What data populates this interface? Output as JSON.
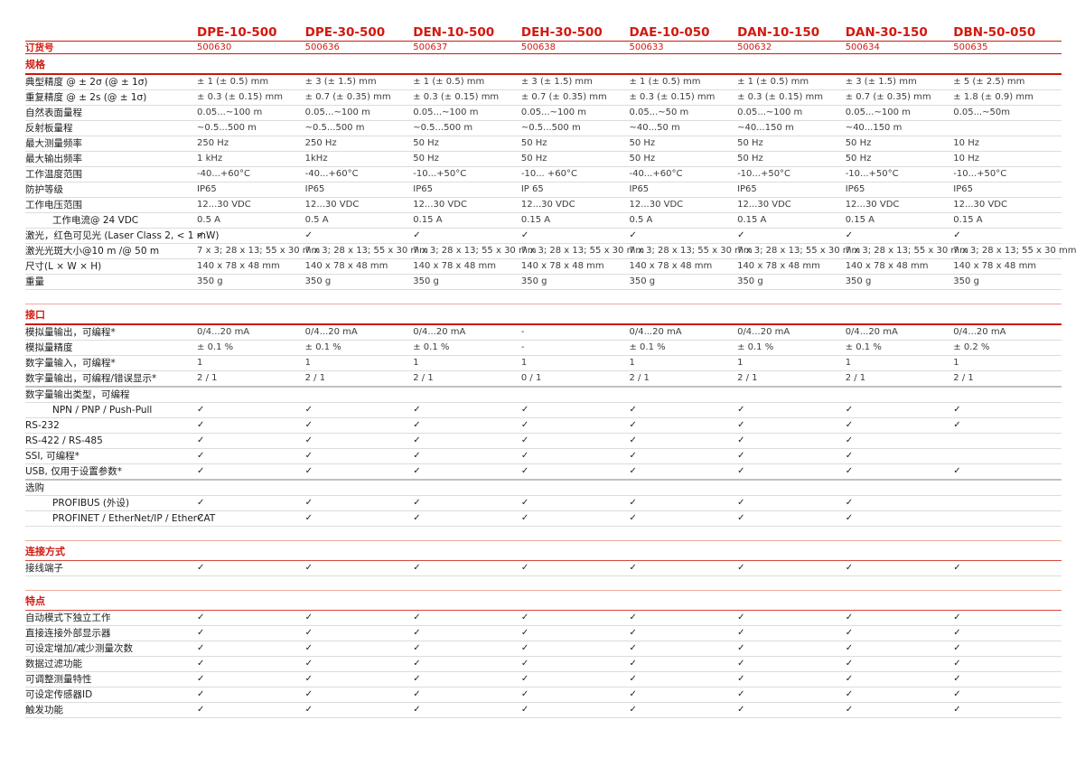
{
  "colors": {
    "accent_red": "#d2190f",
    "row_line_gray": "#dcdcdc",
    "section_line_light": "#efaaa1",
    "text_dark": "#1c1c1c",
    "text_value": "#3c3c3c"
  },
  "table": {
    "order_label": "订货号",
    "check_glyph": "✓",
    "models": [
      {
        "name": "DPE-10-500",
        "order": "500630"
      },
      {
        "name": "DPE-30-500",
        "order": "500636"
      },
      {
        "name": "DEN-10-500",
        "order": "500637"
      },
      {
        "name": "DEH-30-500",
        "order": "500638"
      },
      {
        "name": "DAE-10-050",
        "order": "500633"
      },
      {
        "name": "DAN-10-150",
        "order": "500632"
      },
      {
        "name": "DAN-30-150",
        "order": "500634"
      },
      {
        "name": "DBN-50-050",
        "order": "500635"
      }
    ],
    "sections": [
      {
        "title": "规格",
        "rows": [
          {
            "label": "典型精度 @ ± 2σ (@ ± 1σ)",
            "indent": false,
            "subhead": false,
            "values": [
              "± 1 (± 0.5) mm",
              "± 3 (± 1.5) mm",
              "± 1 (± 0.5) mm",
              "± 3 (± 1.5) mm",
              "± 1 (± 0.5) mm",
              "± 1 (± 0.5) mm",
              "± 3 (± 1.5) mm",
              "± 5 (± 2.5) mm"
            ]
          },
          {
            "label": "重复精度 @ ± 2s (@ ± 1σ)",
            "indent": false,
            "subhead": false,
            "values": [
              "± 0.3 (± 0.15) mm",
              "± 0.7 (± 0.35) mm",
              "± 0.3 (± 0.15) mm",
              "± 0.7 (± 0.35) mm",
              "± 0.3 (± 0.15) mm",
              "± 0.3 (± 0.15) mm",
              "± 0.7 (± 0.35) mm",
              "± 1.8 (± 0.9) mm"
            ]
          },
          {
            "label": "自然表面量程",
            "indent": false,
            "subhead": false,
            "values": [
              "0.05...~100 m",
              "0.05...~100 m",
              "0.05...~100 m",
              "0.05...~100 m",
              "0.05...~50 m",
              "0.05...~100 m",
              "0.05...~100 m",
              "0.05...~50m"
            ]
          },
          {
            "label": "反射板量程",
            "indent": false,
            "subhead": false,
            "values": [
              "~0.5...500 m",
              "~0.5...500 m",
              "~0.5...500 m",
              "~0.5...500 m",
              "~40...50 m",
              "~40...150 m",
              "~40...150 m",
              ""
            ]
          },
          {
            "label": "最大测量频率",
            "indent": false,
            "subhead": false,
            "values": [
              "250 Hz",
              "250 Hz",
              "50 Hz",
              "50 Hz",
              "50 Hz",
              "50 Hz",
              "50 Hz",
              "10 Hz"
            ]
          },
          {
            "label": "最大输出频率",
            "indent": false,
            "subhead": false,
            "values": [
              "1 kHz",
              "1kHz",
              "50 Hz",
              "50 Hz",
              "50 Hz",
              "50 Hz",
              "50 Hz",
              "10 Hz"
            ]
          },
          {
            "label": "工作温度范围",
            "indent": false,
            "subhead": false,
            "values": [
              "-40...+60°C",
              "-40...+60°C",
              "-10...+50°C",
              "-10... +60°C",
              "-40...+60°C",
              "-10...+50°C",
              "-10...+50°C",
              "-10...+50°C"
            ]
          },
          {
            "label": "防护等级",
            "indent": false,
            "subhead": false,
            "values": [
              "IP65",
              "IP65",
              "IP65",
              "IP 65",
              "IP65",
              "IP65",
              "IP65",
              "IP65"
            ]
          },
          {
            "label": "工作电压范围",
            "indent": false,
            "subhead": false,
            "values": [
              "12...30 VDC",
              "12...30 VDC",
              "12...30 VDC",
              "12...30 VDC",
              "12...30 VDC",
              "12...30 VDC",
              "12...30 VDC",
              "12...30 VDC"
            ]
          },
          {
            "label": "工作电流@ 24 VDC",
            "indent": true,
            "subhead": false,
            "values": [
              "0.5 A",
              "0.5 A",
              "0.15 A",
              "0.15 A",
              "0.5 A",
              "0.15 A",
              "0.15 A",
              "0.15 A"
            ]
          },
          {
            "label": "激光，红色可见光 (Laser Class 2, < 1 mW)",
            "indent": false,
            "subhead": false,
            "values": [
              "✓",
              "✓",
              "✓",
              "✓",
              "✓",
              "✓",
              "✓",
              "✓"
            ]
          },
          {
            "label": "激光光斑大小@10 m /@ 50 m",
            "indent": false,
            "subhead": false,
            "values": [
              "7 x 3; 28 x 13; 55 x 30 mm",
              "7 x 3; 28 x 13; 55 x 30 mm",
              "7 x 3; 28 x 13; 55 x 30 mm",
              "7 x 3; 28 x 13; 55 x 30 mm",
              "7 x 3; 28 x 13; 55 x 30 mm",
              "7 x 3; 28 x 13; 55 x 30 mm",
              "7 x 3; 28 x 13; 55 x 30 mm",
              "7 x 3; 28 x 13; 55 x 30 mm"
            ]
          },
          {
            "label": "尺寸(L × W × H)",
            "indent": false,
            "subhead": false,
            "values": [
              "140 x 78 x 48 mm",
              "140 x 78 x 48 mm",
              "140 x 78 x 48 mm",
              "140 x 78 x 48 mm",
              "140 x 78 x 48 mm",
              "140 x 78 x 48 mm",
              "140 x 78 x 48 mm",
              "140 x 78 x 48 mm"
            ]
          },
          {
            "label": "重量",
            "indent": false,
            "subhead": false,
            "values": [
              "350 g",
              "350 g",
              "350 g",
              "350 g",
              "350 g",
              "350 g",
              "350 g",
              "350 g"
            ]
          }
        ]
      },
      {
        "title": "接口",
        "rows": [
          {
            "label": "模拟量输出，可编程*",
            "indent": false,
            "subhead": false,
            "values": [
              "0/4...20 mA",
              "0/4...20 mA",
              "0/4...20 mA",
              "-",
              "0/4...20 mA",
              "0/4...20 mA",
              "0/4...20 mA",
              "0/4...20 mA"
            ]
          },
          {
            "label": "模拟量精度",
            "indent": false,
            "subhead": false,
            "values": [
              "± 0.1 %",
              "± 0.1 %",
              "± 0.1 %",
              "-",
              "± 0.1 %",
              "± 0.1 %",
              "± 0.1 %",
              "± 0.2 %"
            ]
          },
          {
            "label": "数字量输入，可编程*",
            "indent": false,
            "subhead": false,
            "values": [
              "1",
              "1",
              "1",
              "1",
              "1",
              "1",
              "1",
              "1"
            ]
          },
          {
            "label": "数字量输出，可编程/错误显示*",
            "indent": false,
            "subhead": false,
            "values": [
              "2 / 1",
              "2 / 1",
              "2 / 1",
              "0 / 1",
              "2 / 1",
              "2 / 1",
              "2 / 1",
              "2 / 1"
            ]
          },
          {
            "label": "数字量输出类型，可编程",
            "indent": false,
            "subhead": true,
            "values": [
              "",
              "",
              "",
              "",
              "",
              "",
              "",
              ""
            ]
          },
          {
            "label": "NPN / PNP / Push-Pull",
            "indent": true,
            "subhead": false,
            "values": [
              "✓",
              "✓",
              "✓",
              "✓",
              "✓",
              "✓",
              "✓",
              "✓"
            ]
          },
          {
            "label": "RS-232",
            "indent": false,
            "subhead": false,
            "values": [
              "✓",
              "✓",
              "✓",
              "✓",
              "✓",
              "✓",
              "✓",
              "✓"
            ]
          },
          {
            "label": "RS-422 / RS-485",
            "indent": false,
            "subhead": false,
            "values": [
              "✓",
              "✓",
              "✓",
              "✓",
              "✓",
              "✓",
              "✓",
              ""
            ]
          },
          {
            "label": "SSI, 可编程*",
            "indent": false,
            "subhead": false,
            "values": [
              "✓",
              "✓",
              "✓",
              "✓",
              "✓",
              "✓",
              "✓",
              ""
            ]
          },
          {
            "label": "USB, 仅用于设置参数*",
            "indent": false,
            "subhead": false,
            "values": [
              "✓",
              "✓",
              "✓",
              "✓",
              "✓",
              "✓",
              "✓",
              "✓"
            ]
          },
          {
            "label": "选购",
            "indent": false,
            "subhead": true,
            "values": [
              "",
              "",
              "",
              "",
              "",
              "",
              "",
              ""
            ]
          },
          {
            "label": "PROFIBUS (外设)",
            "indent": true,
            "subhead": false,
            "values": [
              "✓",
              "✓",
              "✓",
              "✓",
              "✓",
              "✓",
              "✓",
              ""
            ]
          },
          {
            "label": "PROFINET / EtherNet/IP / EtherCAT",
            "indent": true,
            "subhead": false,
            "values": [
              "✓",
              "✓",
              "✓",
              "✓",
              "✓",
              "✓",
              "✓",
              ""
            ]
          }
        ]
      },
      {
        "title": "连接方式",
        "rows": [
          {
            "label": "接线端子",
            "indent": false,
            "subhead": false,
            "values": [
              "✓",
              "✓",
              "✓",
              "✓",
              "✓",
              "✓",
              "✓",
              "✓"
            ]
          }
        ]
      },
      {
        "title": "特点",
        "rows": [
          {
            "label": "自动模式下独立工作",
            "indent": false,
            "subhead": false,
            "values": [
              "✓",
              "✓",
              "✓",
              "✓",
              "✓",
              "✓",
              "✓",
              "✓"
            ]
          },
          {
            "label": "直接连接外部显示器",
            "indent": false,
            "subhead": false,
            "values": [
              "✓",
              "✓",
              "✓",
              "✓",
              "✓",
              "✓",
              "✓",
              "✓"
            ]
          },
          {
            "label": "可设定增加/减少测量次数",
            "indent": false,
            "subhead": false,
            "values": [
              "✓",
              "✓",
              "✓",
              "✓",
              "✓",
              "✓",
              "✓",
              "✓"
            ]
          },
          {
            "label": "数据过滤功能",
            "indent": false,
            "subhead": false,
            "values": [
              "✓",
              "✓",
              "✓",
              "✓",
              "✓",
              "✓",
              "✓",
              "✓"
            ]
          },
          {
            "label": "可调整测量特性",
            "indent": false,
            "subhead": false,
            "values": [
              "✓",
              "✓",
              "✓",
              "✓",
              "✓",
              "✓",
              "✓",
              "✓"
            ]
          },
          {
            "label": "可设定传感器ID",
            "indent": false,
            "subhead": false,
            "values": [
              "✓",
              "✓",
              "✓",
              "✓",
              "✓",
              "✓",
              "✓",
              "✓"
            ]
          },
          {
            "label": "触发功能",
            "indent": false,
            "subhead": false,
            "values": [
              "✓",
              "✓",
              "✓",
              "✓",
              "✓",
              "✓",
              "✓",
              "✓"
            ]
          }
        ]
      }
    ]
  }
}
